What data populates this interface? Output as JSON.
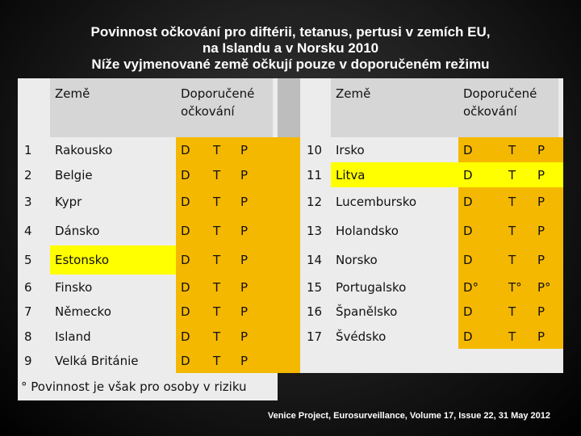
{
  "title": [
    "Povinnost očkování pro diftérii, tetanus, pertusi v zemích EU,",
    "na Islandu a v Norsku  2010",
    "Níže vyjmenované země očkují pouze v doporučeném režimu"
  ],
  "table": {
    "header": [
      "Země",
      "Doporučené očkování",
      "Země",
      "Doporučené očkování"
    ],
    "rows": [
      [
        1,
        "Rakousko",
        "D",
        "T",
        "P",
        10,
        "Irsko",
        "D",
        "T",
        "P"
      ],
      [
        2,
        "Belgie",
        "D",
        "T",
        "P",
        11,
        "Litva",
        "D",
        "T",
        "P"
      ],
      [
        3,
        "Kypr",
        "D",
        "T",
        "P",
        12,
        "Lucembursko",
        "D",
        "T",
        "P"
      ],
      [
        4,
        "Dánsko",
        "D",
        "T",
        "P",
        13,
        "Holandsko",
        "D",
        "T",
        "P"
      ],
      [
        5,
        "Estonsko",
        "D",
        "T",
        "P",
        14,
        "Norsko",
        "D",
        "T",
        "P"
      ],
      [
        6,
        "Finsko",
        "D",
        "T",
        "P",
        15,
        "Portugalsko",
        "D°",
        "T°",
        "P°"
      ],
      [
        7,
        "Německo",
        "D",
        "T",
        "P",
        16,
        "Španělsko",
        "D",
        "T",
        "P"
      ],
      [
        8,
        "Island",
        "D",
        "T",
        "P",
        17,
        "Švédsko",
        "D",
        "T",
        "P"
      ],
      [
        9,
        "Velká Británie",
        "D",
        "T",
        "P"
      ]
    ]
  },
  "footnote": "° Povinnost je však pro osoby v riziku",
  "source": "Venice Project, Eurosurveillance, Volume 17, Issue 22, 31 May 2012"
}
